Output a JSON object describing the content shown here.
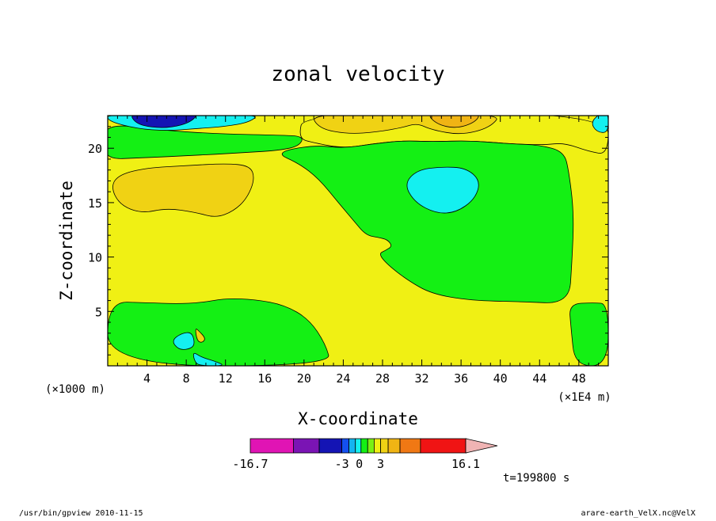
{
  "chart_data": {
    "type": "heatmap",
    "title": "zonal velocity",
    "xlabel": "X-coordinate",
    "ylabel": "Z-coordinate",
    "x_unit": "(×1E4 m)",
    "y_unit": "(×1000 m)",
    "xlim": [
      0,
      51
    ],
    "ylim": [
      0,
      23
    ],
    "x_ticks": [
      4,
      8,
      12,
      16,
      20,
      24,
      28,
      32,
      36,
      40,
      44,
      48
    ],
    "y_ticks": [
      5,
      10,
      15,
      20
    ],
    "colorbar": {
      "min_label": "-16.7",
      "max_label": "16.1",
      "mid_labels": [
        {
          "text": "-3",
          "value": -3
        },
        {
          "text": "0",
          "value": 0
        },
        {
          "text": "3",
          "value": 3
        }
      ],
      "levels": [
        -16.7,
        -12.5,
        -8.3,
        -4.2,
        -3,
        -2,
        -1,
        0,
        1,
        2,
        3,
        4.2,
        8,
        12,
        16.1
      ],
      "colors": [
        "#e014b4",
        "#7a14b4",
        "#1414b4",
        "#1450f0",
        "#14b4f0",
        "#14f0f0",
        "#14f014",
        "#7af014",
        "#f0f014",
        "#f0d214",
        "#f0b414",
        "#f07814",
        "#f01414",
        "#f07878"
      ],
      "extend_max_color": "#f0b4b4"
    },
    "regions": [
      {
        "name": "background-positive-weak",
        "value": 0.5,
        "color": "#f0f014"
      },
      {
        "name": "negative-weak-upper-band",
        "value": -0.5,
        "color": "#14f014"
      },
      {
        "name": "negative-pocket-top-left",
        "value": -2.5,
        "color": "#14f0f0"
      },
      {
        "name": "negative-strong-top-left",
        "value": -5,
        "color": "#1414b4"
      },
      {
        "name": "positive-cap-top",
        "value": 0.5,
        "color": "#f0f014"
      },
      {
        "name": "positive-moderate-top",
        "value": 2.5,
        "color": "#f0d214"
      },
      {
        "name": "positive-strong-top",
        "value": 5,
        "color": "#f0b414"
      },
      {
        "name": "negative-pocket-top-right",
        "value": -2.5,
        "color": "#14f0f0"
      },
      {
        "name": "positive-moderate-left-lobe",
        "value": 2.5,
        "color": "#f0d214"
      },
      {
        "name": "negative-central-tongue",
        "value": -0.5,
        "color": "#14f014"
      },
      {
        "name": "negative-pocket-center-right",
        "value": -2.5,
        "color": "#14f0f0"
      },
      {
        "name": "negative-bottom-left",
        "value": -0.5,
        "color": "#14f014"
      },
      {
        "name": "negative-bottom-right",
        "value": -0.5,
        "color": "#14f014"
      },
      {
        "name": "negative-pocket-bottom-1",
        "value": -2.5,
        "color": "#14f0f0"
      },
      {
        "name": "negative-pocket-bottom-2",
        "value": -2.5,
        "color": "#14f0f0"
      },
      {
        "name": "positive-bottom-spot",
        "value": 2.5,
        "color": "#f0d214"
      }
    ]
  },
  "annotations": {
    "time": "t=199800 s",
    "footer_left": "/usr/bin/gpview   2010-11-15",
    "footer_right": "arare-earth_VelX.nc@VelX"
  }
}
